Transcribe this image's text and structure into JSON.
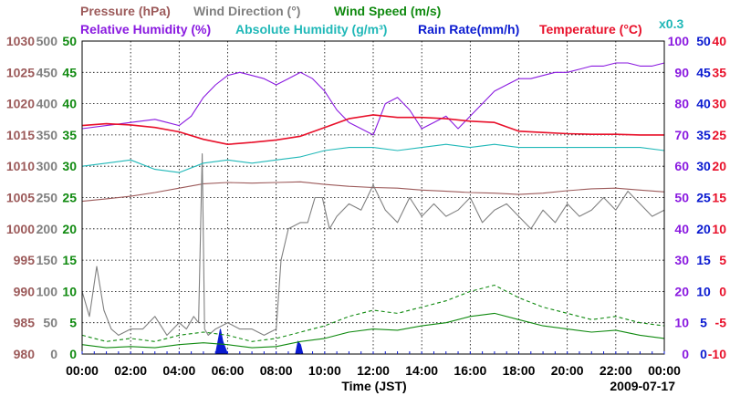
{
  "chart_data": {
    "type": "line",
    "date": "2009-07-17",
    "xlabel": "Time (JST)",
    "x_ticks": [
      "00:00",
      "02:00",
      "04:00",
      "06:00",
      "08:00",
      "10:00",
      "12:00",
      "14:00",
      "16:00",
      "18:00",
      "20:00",
      "22:00",
      "00:00"
    ],
    "x_range_hours": [
      0,
      24
    ],
    "grid": true,
    "colors": {
      "pressure": "#9c5a5a",
      "wind_direction": "#808080",
      "wind_speed": "#108a10",
      "relative_humidity": "#8a1ae0",
      "absolute_humidity": "#20b8b8",
      "rain_rate": "#0a1ad0",
      "temperature": "#e8102a"
    },
    "legend": {
      "row1": [
        {
          "key": "pressure",
          "label": "Pressure (hPa)"
        },
        {
          "key": "wind_direction",
          "label": "Wind Direction (°)"
        },
        {
          "key": "wind_speed",
          "label": "Wind Speed (m/s)"
        }
      ],
      "row2": [
        {
          "key": "relative_humidity",
          "label": "Relative Humidity (%)"
        },
        {
          "key": "absolute_humidity",
          "label": "Absolute Humidity (g/m³)"
        },
        {
          "key": "rain_rate",
          "label": "Rain Rate(mm/h)"
        },
        {
          "key": "temperature",
          "label": "Temperature (°C)"
        }
      ],
      "scale_note": "x0.3"
    },
    "axes": {
      "pressure": {
        "range": [
          980,
          1030
        ],
        "ticks": [
          "1030",
          "1025",
          "1020",
          "1015",
          "1010",
          "1005",
          "1000",
          "995",
          "990",
          "985",
          "980"
        ]
      },
      "wind_direction": {
        "range": [
          0,
          500
        ],
        "ticks": [
          "500",
          "450",
          "400",
          "350",
          "300",
          "250",
          "200",
          "150",
          "100",
          "50",
          "0"
        ]
      },
      "wind_speed": {
        "range": [
          0,
          50
        ],
        "ticks": [
          "50",
          "45",
          "40",
          "35",
          "30",
          "25",
          "20",
          "15",
          "10",
          "5",
          "0"
        ]
      },
      "relative_humidity": {
        "range": [
          0,
          100
        ],
        "ticks": [
          "100",
          "90",
          "80",
          "70",
          "60",
          "50",
          "40",
          "30",
          "20",
          "10",
          "0"
        ]
      },
      "rain_rate": {
        "range": [
          0,
          50
        ],
        "ticks": [
          "50",
          "45",
          "40",
          "35",
          "30",
          "25",
          "20",
          "15",
          "10",
          "5",
          "0"
        ]
      },
      "temperature": {
        "range": [
          -10,
          40
        ],
        "ticks": [
          "40",
          "35",
          "30",
          "25",
          "20",
          "15",
          "10",
          "5",
          "0",
          "-5",
          "-10"
        ]
      }
    },
    "series": [
      {
        "name": "Pressure (hPa)",
        "key": "pressure",
        "axis": "pressure",
        "x": [
          0,
          1,
          2,
          3,
          4,
          5,
          6,
          7,
          8,
          9,
          10,
          11,
          12,
          13,
          14,
          15,
          16,
          17,
          18,
          19,
          20,
          21,
          22,
          23,
          24
        ],
        "y": [
          1004.4,
          1004.8,
          1005.2,
          1005.8,
          1006.5,
          1007.2,
          1007.4,
          1007.3,
          1007.4,
          1007.5,
          1007.1,
          1006.8,
          1006.6,
          1006.5,
          1006.2,
          1006.0,
          1005.8,
          1005.7,
          1005.5,
          1005.7,
          1006.1,
          1006.4,
          1006.5,
          1006.2,
          1005.9
        ]
      },
      {
        "name": "Wind Direction (°)",
        "key": "wind_direction",
        "axis": "wind_direction",
        "x": [
          0,
          0.3,
          0.6,
          0.9,
          1.2,
          1.5,
          2,
          2.5,
          3,
          3.5,
          4,
          4.3,
          4.6,
          4.8,
          4.95,
          5.05,
          5.2,
          5.5,
          6,
          6.5,
          7,
          7.5,
          8,
          8.2,
          8.5,
          9,
          9.3,
          9.6,
          9.9,
          10.2,
          10.5,
          11,
          11.5,
          12,
          12.5,
          13,
          13.5,
          14,
          14.5,
          15,
          15.5,
          16,
          16.5,
          17,
          17.5,
          18,
          18.5,
          19,
          19.5,
          20,
          20.5,
          21,
          21.5,
          22,
          22.5,
          23,
          23.5,
          24
        ],
        "y": [
          100,
          60,
          140,
          70,
          40,
          30,
          40,
          40,
          60,
          30,
          50,
          40,
          60,
          50,
          320,
          40,
          30,
          40,
          50,
          40,
          40,
          30,
          40,
          150,
          200,
          210,
          210,
          250,
          250,
          200,
          220,
          240,
          230,
          270,
          230,
          210,
          250,
          220,
          240,
          220,
          230,
          250,
          210,
          230,
          240,
          220,
          200,
          230,
          210,
          240,
          220,
          230,
          250,
          230,
          260,
          240,
          220,
          230
        ]
      },
      {
        "name": "Wind Speed (m/s)",
        "key": "wind_speed",
        "axis": "wind_speed",
        "x": [
          0,
          1,
          2,
          3,
          4,
          5,
          6,
          7,
          8,
          9,
          10,
          11,
          12,
          13,
          14,
          15,
          16,
          17,
          18,
          19,
          20,
          21,
          22,
          23,
          24
        ],
        "y": [
          1.5,
          1.0,
          1.2,
          1.0,
          1.5,
          1.8,
          1.5,
          1.0,
          1.2,
          2.0,
          2.5,
          3.5,
          4.0,
          3.8,
          4.5,
          5.0,
          6.0,
          6.5,
          5.5,
          4.5,
          4.0,
          3.5,
          3.8,
          3.0,
          2.5
        ]
      },
      {
        "name": "Wind Speed gust (m/s)",
        "key": "wind_speed",
        "axis": "wind_speed",
        "dashed": true,
        "x": [
          0,
          1,
          2,
          3,
          4,
          5,
          6,
          7,
          8,
          9,
          10,
          11,
          12,
          13,
          14,
          15,
          16,
          17,
          18,
          19,
          20,
          21,
          22,
          23,
          24
        ],
        "y": [
          3.0,
          2.0,
          2.5,
          2.0,
          3.0,
          3.5,
          3.0,
          2.0,
          2.5,
          3.5,
          4.5,
          6.0,
          7.0,
          6.5,
          7.5,
          8.5,
          10.0,
          11.0,
          9.0,
          7.5,
          6.5,
          5.5,
          6.0,
          5.0,
          4.5
        ]
      },
      {
        "name": "Relative Humidity (%)",
        "key": "relative_humidity",
        "axis": "relative_humidity",
        "x": [
          0,
          1,
          2,
          3,
          3.5,
          4,
          4.5,
          5,
          5.5,
          6,
          6.5,
          7,
          7.5,
          8,
          8.5,
          9,
          9.5,
          10,
          10.5,
          11,
          11.5,
          12,
          12.5,
          13,
          13.5,
          14,
          14.5,
          15,
          15.5,
          16,
          16.5,
          17,
          17.5,
          18,
          18.5,
          19,
          19.5,
          20,
          20.5,
          21,
          21.5,
          22,
          22.5,
          23,
          23.5,
          24
        ],
        "y": [
          72,
          73,
          74,
          75,
          74,
          73,
          76,
          82,
          86,
          89,
          90,
          89,
          88,
          86,
          88,
          90,
          88,
          84,
          78,
          74,
          72,
          70,
          80,
          82,
          78,
          72,
          74,
          76,
          72,
          76,
          80,
          84,
          86,
          88,
          88,
          89,
          90,
          90,
          91,
          92,
          92,
          93,
          93,
          92,
          92,
          93
        ]
      },
      {
        "name": "Absolute Humidity (g/m³)",
        "key": "absolute_humidity",
        "axis": "relative_humidity",
        "x": [
          0,
          1,
          2,
          3,
          4,
          5,
          6,
          7,
          8,
          9,
          10,
          11,
          12,
          13,
          14,
          15,
          16,
          17,
          18,
          19,
          20,
          21,
          22,
          23,
          24
        ],
        "y": [
          60,
          61,
          62,
          59,
          58,
          61,
          62,
          61,
          62,
          63,
          65,
          66,
          66,
          65,
          66,
          67,
          66,
          67,
          66,
          66,
          66,
          66,
          66,
          66,
          65
        ]
      },
      {
        "name": "Rain Rate(mm/h)",
        "key": "rain_rate",
        "axis": "rain_rate",
        "area": true,
        "x": [
          0,
          5.5,
          5.6,
          5.7,
          5.8,
          6.0,
          8.8,
          8.9,
          9.0,
          9.1,
          24
        ],
        "y": [
          0,
          0,
          2,
          4,
          2,
          0,
          0,
          2,
          1.5,
          0,
          0
        ]
      },
      {
        "name": "Temperature (°C)",
        "key": "temperature",
        "axis": "temperature",
        "x": [
          0,
          1,
          2,
          3,
          4,
          5,
          6,
          7,
          8,
          9,
          10,
          11,
          12,
          13,
          14,
          15,
          16,
          17,
          18,
          19,
          20,
          21,
          22,
          23,
          24
        ],
        "y": [
          26.5,
          26.8,
          26.6,
          26.2,
          25.5,
          24.3,
          23.5,
          23.8,
          24.2,
          24.8,
          26.2,
          27.6,
          28.2,
          27.8,
          27.8,
          27.6,
          27.2,
          27.0,
          25.6,
          25.4,
          25.2,
          25.1,
          25.1,
          25.0,
          25.0
        ]
      }
    ]
  }
}
